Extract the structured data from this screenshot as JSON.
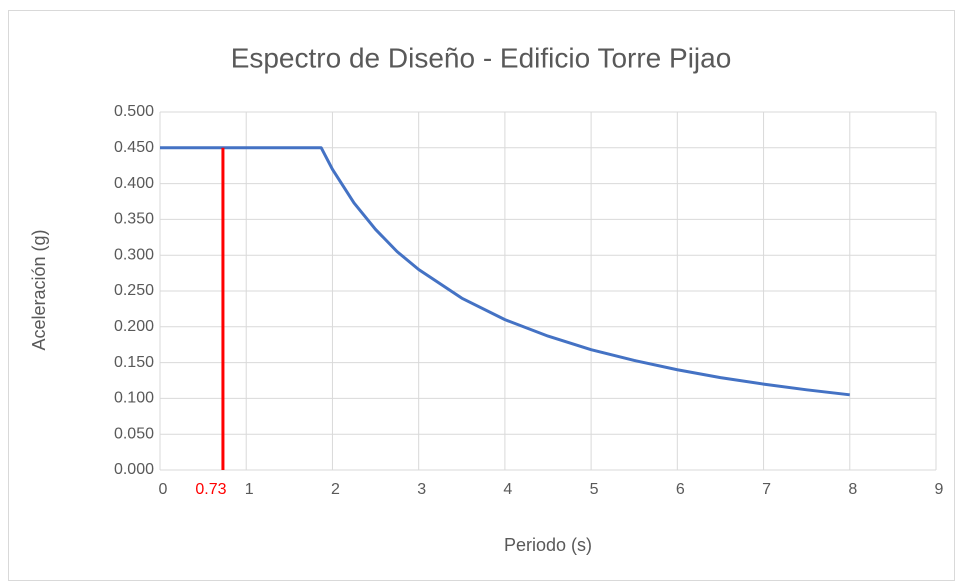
{
  "chart_data": {
    "type": "line",
    "title": "Espectro de Diseño - Edificio Torre Pijao",
    "xlabel": "Periodo (s)",
    "ylabel": "Aceleración (g)",
    "x": [
      0,
      0.5,
      1,
      1.5,
      1.87,
      2,
      2.25,
      2.5,
      2.75,
      3,
      3.5,
      4,
      4.5,
      5,
      5.5,
      6,
      6.5,
      7,
      7.5,
      8
    ],
    "series": [
      {
        "color": "#4472c4",
        "values": [
          0.45,
          0.45,
          0.45,
          0.45,
          0.45,
          0.42,
          0.373,
          0.336,
          0.305,
          0.28,
          0.24,
          0.21,
          0.187,
          0.168,
          0.153,
          0.14,
          0.129,
          0.12,
          0.112,
          0.105
        ]
      }
    ],
    "vline": {
      "x": 0.73,
      "y": 0.45,
      "color": "#ff0000"
    },
    "xlim": [
      0,
      9
    ],
    "xticks": [
      0,
      1,
      2,
      3,
      4,
      5,
      6,
      7,
      8,
      9
    ],
    "ylim": [
      0,
      0.5
    ],
    "yticks": [
      {
        "value": 0,
        "label": "0.000"
      },
      {
        "value": 0.05,
        "label": "0.050"
      },
      {
        "value": 0.1,
        "label": "0.100"
      },
      {
        "value": 0.15,
        "label": "0.150"
      },
      {
        "value": 0.2,
        "label": "0.200"
      },
      {
        "value": 0.25,
        "label": "0.250"
      },
      {
        "value": 0.3,
        "label": "0.300"
      },
      {
        "value": 0.35,
        "label": "0.350"
      },
      {
        "value": 0.4,
        "label": "0.400"
      },
      {
        "value": 0.45,
        "label": "0.450"
      },
      {
        "value": 0.5,
        "label": "0.500"
      }
    ],
    "grid": true
  }
}
